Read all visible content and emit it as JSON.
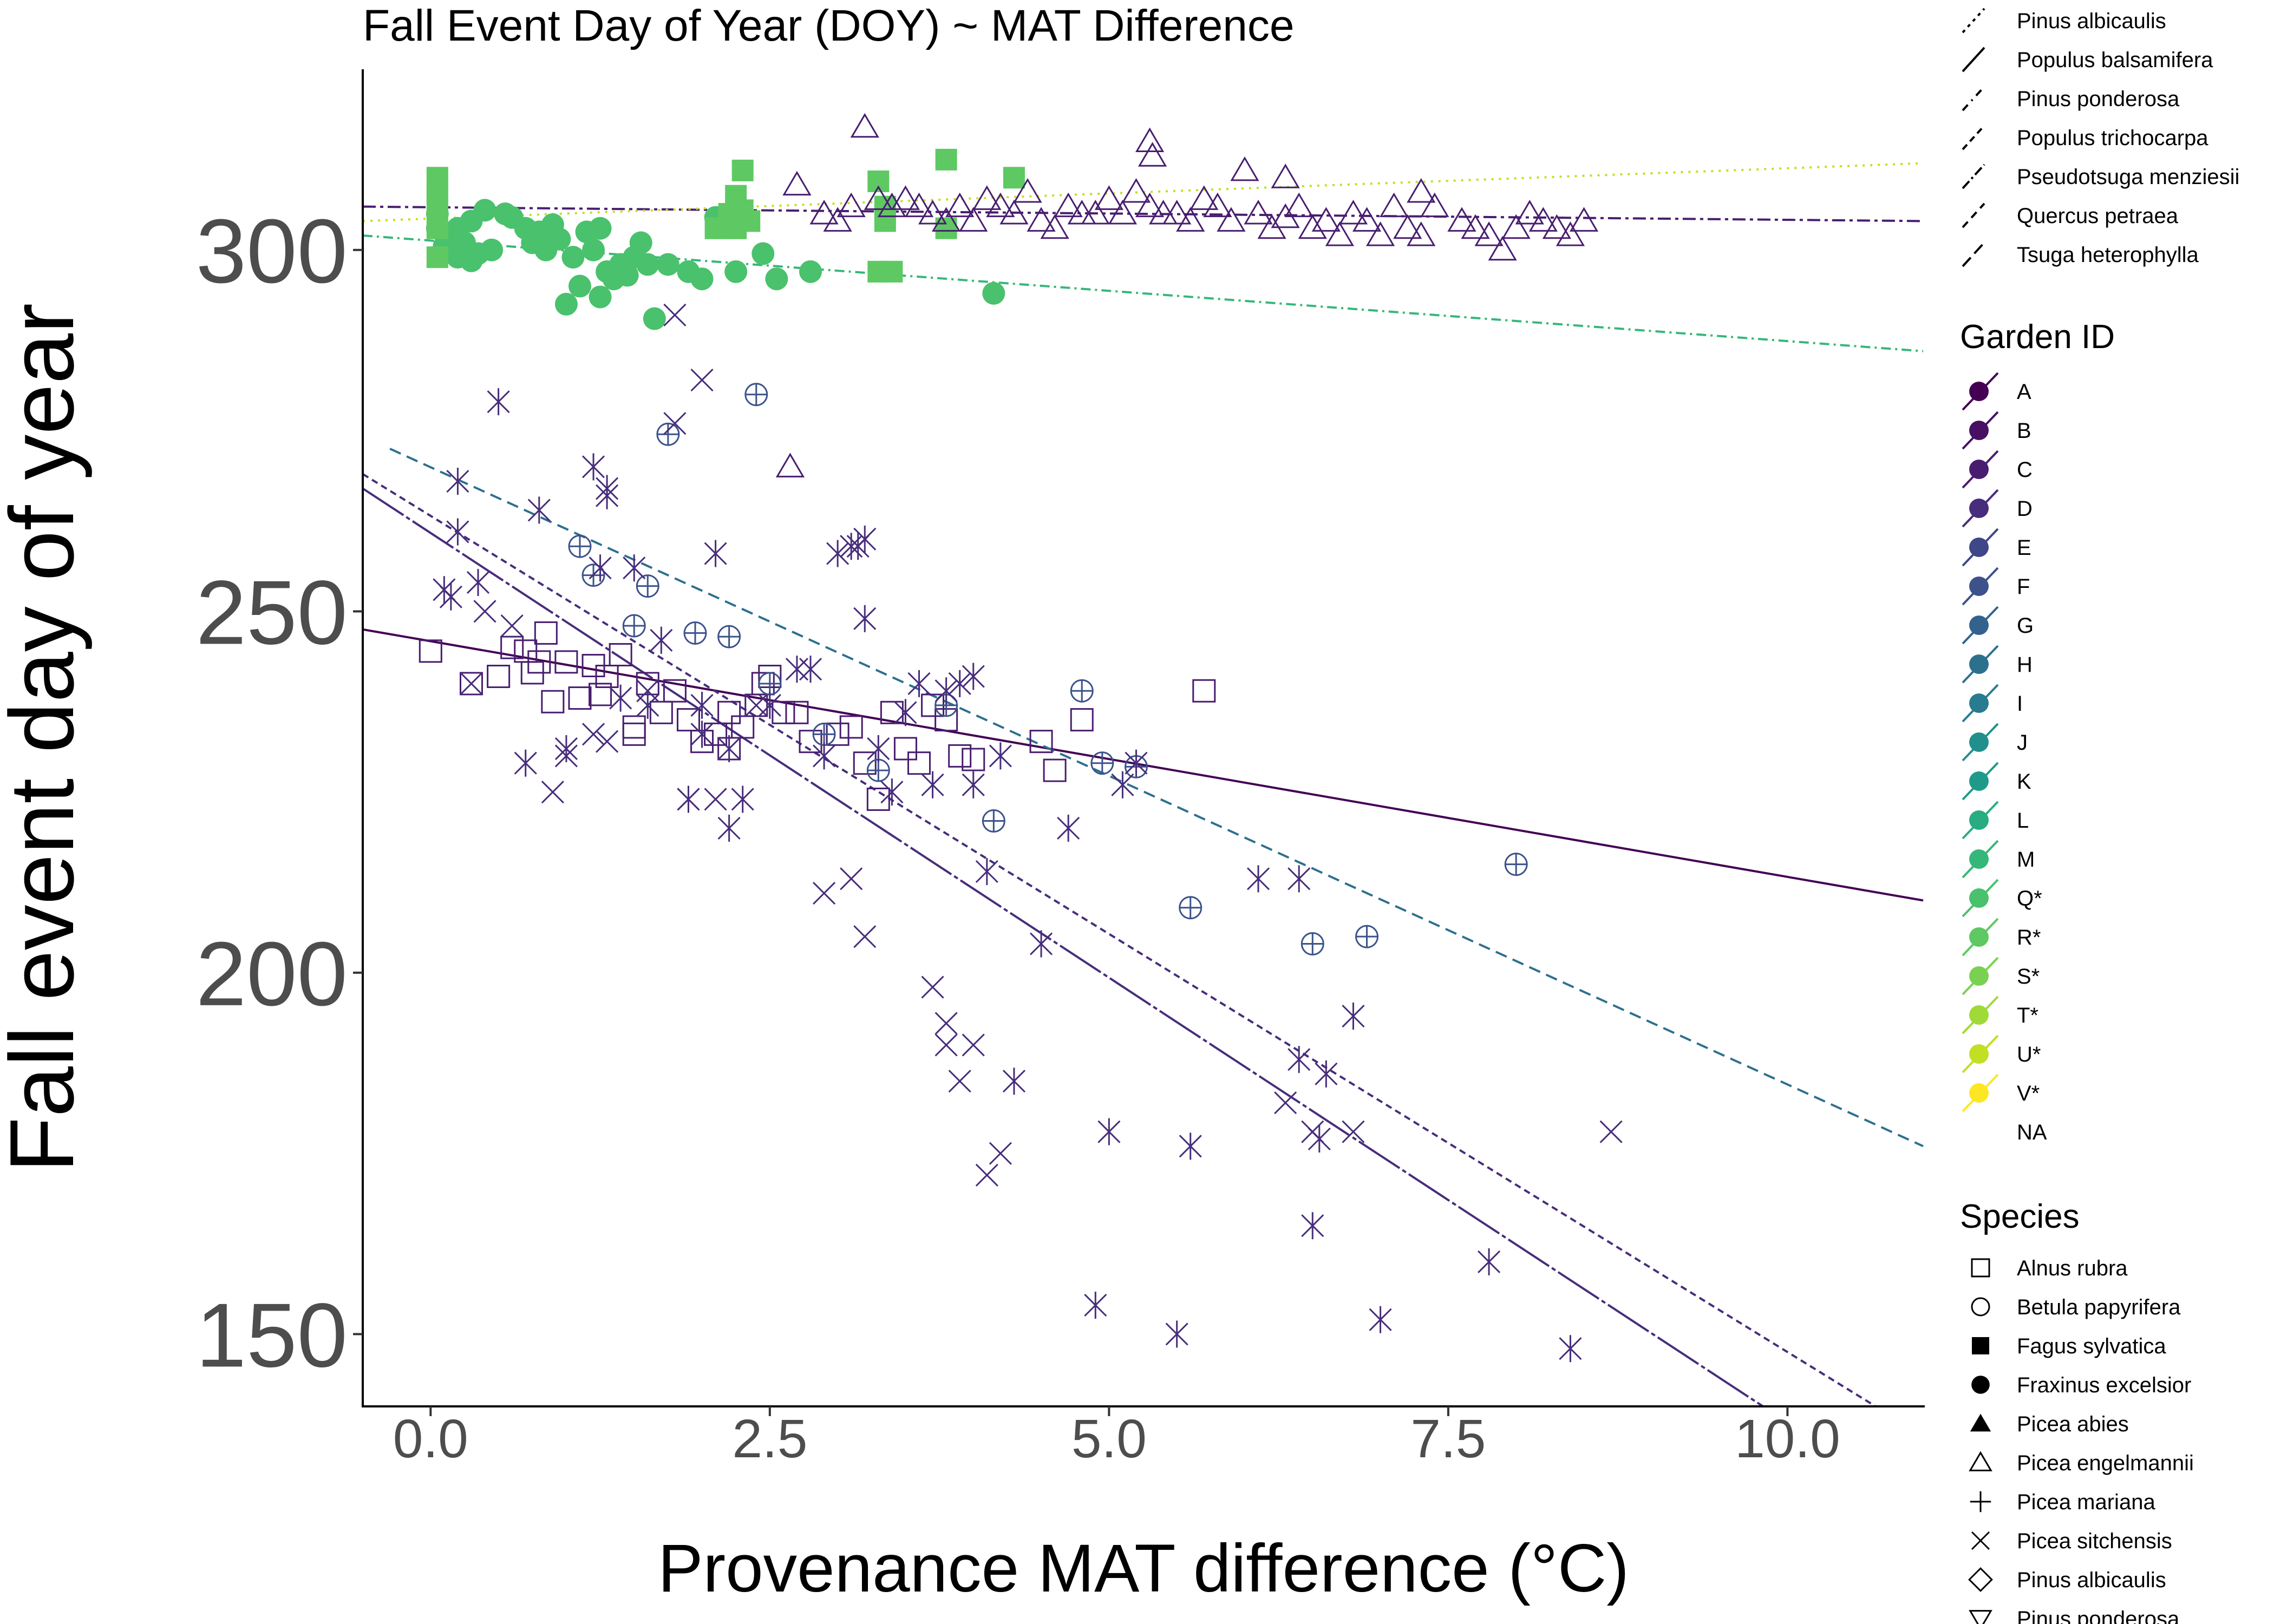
{
  "chart_data": {
    "type": "scatter",
    "title": "Fall Event Day of Year (DOY) ~ MAT Difference",
    "xlabel": "Provenance MAT difference (°C)",
    "ylabel": "Fall event day of year",
    "xlim": [
      -0.5,
      11.0
    ],
    "ylim": [
      140,
      325
    ],
    "x_ticks": [
      0.0,
      2.5,
      5.0,
      7.5,
      10.0
    ],
    "x_tick_labels": [
      "0.0",
      "2.5",
      "5.0",
      "7.5",
      "10.0"
    ],
    "y_ticks": [
      150,
      200,
      250,
      300
    ],
    "y_tick_labels": [
      "150",
      "200",
      "250",
      "300"
    ],
    "grid": false,
    "legend_position": "right",
    "legends": {
      "linetype_entries": [
        "Pinus albicaulis",
        "Populus balsamifera",
        "Pinus ponderosa",
        "Populus trichocarpa",
        "Pseudotsuga menziesii",
        "Quercus petraea",
        "Tsuga heterophylla"
      ],
      "garden": {
        "title": "Garden ID",
        "entries": [
          {
            "label": "A",
            "color": "#440154"
          },
          {
            "label": "B",
            "color": "#471063"
          },
          {
            "label": "C",
            "color": "#481D6F"
          },
          {
            "label": "D",
            "color": "#472D7B"
          },
          {
            "label": "E",
            "color": "#3F4788"
          },
          {
            "label": "F",
            "color": "#3B528B"
          },
          {
            "label": "G",
            "color": "#33638D"
          },
          {
            "label": "H",
            "color": "#2D708E"
          },
          {
            "label": "I",
            "color": "#287C8E"
          },
          {
            "label": "J",
            "color": "#21908C"
          },
          {
            "label": "K",
            "color": "#1F9A8A"
          },
          {
            "label": "L",
            "color": "#27AD81"
          },
          {
            "label": "M",
            "color": "#35B779"
          },
          {
            "label": "Q*",
            "color": "#4AC16D"
          },
          {
            "label": "R*",
            "color": "#5EC962"
          },
          {
            "label": "S*",
            "color": "#7AD151"
          },
          {
            "label": "T*",
            "color": "#A0DA39"
          },
          {
            "label": "U*",
            "color": "#C2DF23"
          },
          {
            "label": "V*",
            "color": "#FDE725"
          },
          {
            "label": "NA",
            "color": ""
          }
        ]
      },
      "species": {
        "title": "Species",
        "entries": [
          {
            "label": "Alnus rubra",
            "shape": "square-open"
          },
          {
            "label": "Betula papyrifera",
            "shape": "circle-open"
          },
          {
            "label": "Fagus sylvatica",
            "shape": "square-filled"
          },
          {
            "label": "Fraxinus excelsior",
            "shape": "circle-filled"
          },
          {
            "label": "Picea abies",
            "shape": "triangle-filled"
          },
          {
            "label": "Picea engelmannii",
            "shape": "triangle-open"
          },
          {
            "label": "Picea mariana",
            "shape": "plus"
          },
          {
            "label": "Picea sitchensis",
            "shape": "cross"
          },
          {
            "label": "Pinus albicaulis",
            "shape": "diamond-open"
          },
          {
            "label": "Pinus ponderosa",
            "shape": "triangle-down-open"
          }
        ]
      }
    },
    "trend_lines": [
      {
        "color": "#481D6F",
        "dash": "24 8 6 8",
        "x": [
          -0.5,
          11.0
        ],
        "y": [
          306.0,
          304.0
        ]
      },
      {
        "color": "#C2DF23",
        "dash": "4 10",
        "x": [
          -0.5,
          11.0
        ],
        "y": [
          304.0,
          312.0
        ]
      },
      {
        "color": "#35B779",
        "dash": "18 8 4 8",
        "x": [
          -0.5,
          11.0
        ],
        "y": [
          302.0,
          286.0
        ]
      },
      {
        "color": "#440154",
        "dash": "",
        "x": [
          -0.5,
          11.0
        ],
        "y": [
          247.5,
          210.0
        ]
      },
      {
        "color": "#2D708E",
        "dash": "22 12",
        "x": [
          -0.3,
          11.0
        ],
        "y": [
          272.5,
          176.0
        ]
      },
      {
        "color": "#472D7B",
        "dash": "12 8",
        "x": [
          -0.5,
          10.65
        ],
        "y": [
          269.0,
          140.0
        ]
      },
      {
        "color": "#472D7B",
        "dash": "90 6 8 6",
        "x": [
          -0.5,
          9.82
        ],
        "y": [
          267.0,
          140.0
        ]
      }
    ],
    "series": [
      {
        "shape": "circle-filled",
        "color": "#4AC16D",
        "x": [
          0.05,
          0.1,
          0.15,
          0.2,
          0.25,
          0.3,
          0.35,
          0.4,
          0.45,
          0.55,
          0.6,
          0.7,
          0.75,
          0.8,
          0.85,
          0.9,
          0.95,
          1.0,
          1.05,
          1.1,
          1.15,
          1.2,
          1.25,
          1.3,
          1.35,
          1.4,
          1.5,
          1.55,
          1.6,
          1.65,
          1.75,
          1.9,
          2.0,
          2.1,
          2.25,
          2.45,
          2.55,
          2.8,
          4.15,
          0.05,
          0.2,
          0.3,
          1.45,
          1.25
        ],
        "y": [
          303.0,
          300.5,
          302.0,
          299.0,
          301.0,
          304.0,
          299.5,
          305.5,
          300.0,
          305.0,
          304.5,
          303.0,
          301.0,
          302.5,
          300.0,
          303.5,
          301.5,
          292.5,
          299.0,
          295.0,
          302.5,
          300.0,
          293.5,
          297.0,
          296.0,
          298.0,
          299.0,
          301.0,
          298.0,
          290.5,
          298.0,
          297.0,
          296.0,
          304.5,
          297.0,
          299.5,
          296.0,
          297.0,
          294.0,
          305.0,
          303.0,
          298.5,
          296.5,
          303.0
        ]
      },
      {
        "shape": "square-filled",
        "color": "#5EC962",
        "x": [
          0.05,
          0.05,
          0.05,
          0.05,
          0.05,
          2.1,
          2.25,
          2.25,
          2.3,
          2.2,
          2.2,
          3.3,
          3.35,
          3.8,
          3.8,
          4.3,
          3.3,
          3.35,
          3.4,
          2.3,
          2.35
        ],
        "y": [
          308.0,
          310.0,
          303.0,
          306.0,
          299.0,
          303.0,
          303.0,
          307.5,
          311.0,
          305.0,
          303.5,
          309.5,
          304.0,
          312.5,
          303.0,
          310.0,
          297.0,
          306.0,
          297.0,
          305.5,
          304.0
        ]
      },
      {
        "shape": "triangle-open",
        "color": "#481D6F",
        "x": [
          2.7,
          2.65,
          3.2,
          4.8,
          5.4,
          5.6,
          6.0,
          6.3,
          6.5,
          6.6,
          6.8,
          7.0,
          7.2,
          7.3,
          7.4,
          7.6,
          7.7,
          7.8,
          7.9,
          8.0,
          8.1,
          8.2,
          8.3,
          8.4,
          8.5,
          5.2,
          5.3,
          5.5,
          5.7,
          5.8,
          5.9,
          6.1,
          6.2,
          6.4,
          6.7,
          6.9,
          7.1,
          5.0,
          5.1,
          4.0,
          4.1,
          4.2,
          4.3,
          4.4,
          4.5,
          4.6,
          4.7,
          4.9,
          3.5,
          3.6,
          3.7,
          3.8,
          3.9,
          2.9,
          3.0,
          3.1,
          3.3,
          3.4,
          5.3,
          5.32,
          6.3,
          7.3
        ],
        "y": [
          309.0,
          270.0,
          317.0,
          305.0,
          305.0,
          304.0,
          311.0,
          304.5,
          303.0,
          304.0,
          305.0,
          302.0,
          303.0,
          302.0,
          306.0,
          304.0,
          303.0,
          302.0,
          300.0,
          303.0,
          305.0,
          304.0,
          303.0,
          302.0,
          304.0,
          308.0,
          306.0,
          305.0,
          307.0,
          306.0,
          304.0,
          305.0,
          303.0,
          306.0,
          302.0,
          304.0,
          306.0,
          307.0,
          305.0,
          304.0,
          307.0,
          306.0,
          305.0,
          308.0,
          304.0,
          303.0,
          306.0,
          305.0,
          307.0,
          306.0,
          305.0,
          304.0,
          306.0,
          305.0,
          304.0,
          306.0,
          307.0,
          306.0,
          315.0,
          313.0,
          310.0,
          308.0
        ]
      },
      {
        "shape": "square-open",
        "color": "#481D6F",
        "x": [
          0.0,
          0.3,
          0.5,
          0.6,
          0.7,
          0.8,
          0.85,
          0.9,
          1.0,
          1.1,
          1.2,
          1.3,
          1.4,
          1.5,
          1.6,
          1.7,
          1.8,
          1.9,
          2.0,
          2.1,
          2.2,
          2.3,
          2.4,
          2.5,
          2.6,
          2.7,
          2.8,
          3.0,
          3.1,
          3.2,
          3.3,
          3.4,
          3.5,
          3.6,
          3.7,
          3.8,
          3.9,
          4.0,
          4.5,
          4.6,
          4.8,
          5.7,
          1.25,
          1.5,
          0.75,
          2.2,
          2.45
        ],
        "y": [
          244.5,
          240.0,
          241.0,
          245.0,
          244.5,
          243.0,
          247.0,
          237.5,
          243.0,
          238.0,
          242.5,
          241.0,
          244.0,
          234.0,
          240.0,
          236.0,
          239.0,
          235.0,
          232.0,
          233.0,
          236.0,
          234.0,
          237.0,
          241.0,
          236.0,
          236.0,
          232.0,
          233.0,
          234.0,
          229.0,
          224.0,
          236.0,
          231.0,
          229.0,
          237.0,
          235.0,
          230.0,
          229.5,
          232.0,
          228.0,
          235.0,
          239.0,
          238.5,
          233.0,
          241.5,
          231.0,
          240.0
        ]
      },
      {
        "shape": "circle-plus",
        "color": "#3B528B",
        "x": [
          1.1,
          1.2,
          1.5,
          1.6,
          1.75,
          1.95,
          2.2,
          2.4,
          2.5,
          2.9,
          3.3,
          3.8,
          4.15,
          4.8,
          4.95,
          5.2,
          5.6,
          6.5,
          6.9,
          8.0
        ],
        "y": [
          259.0,
          255.0,
          248.0,
          253.5,
          274.5,
          247.0,
          246.5,
          280.0,
          240.0,
          233.0,
          228.0,
          237.0,
          221.0,
          239.0,
          229.0,
          228.5,
          209.0,
          204.0,
          205.0,
          215.0
        ]
      },
      {
        "shape": "asterisk",
        "color": "#472D7B",
        "x": [
          0.1,
          0.15,
          0.2,
          0.35,
          0.5,
          0.7,
          0.8,
          1.0,
          1.2,
          1.25,
          1.3,
          1.4,
          1.5,
          1.6,
          1.7,
          1.9,
          2.0,
          2.1,
          2.2,
          2.3,
          2.5,
          2.7,
          2.9,
          3.0,
          3.1,
          3.2,
          3.3,
          3.5,
          3.6,
          3.7,
          3.8,
          3.9,
          4.0,
          4.1,
          4.2,
          4.3,
          4.5,
          4.7,
          4.9,
          5.0,
          5.1,
          5.2,
          5.5,
          5.6,
          6.1,
          6.4,
          6.5,
          6.6,
          6.8,
          7.0,
          7.8,
          8.4,
          0.2,
          1.3,
          2.0,
          2.2,
          2.8,
          3.4,
          4.0,
          6.4,
          3.15,
          3.2,
          6.55
        ],
        "y": [
          253.0,
          252.0,
          261.0,
          254.0,
          279.0,
          229.0,
          264.0,
          231.0,
          270.0,
          256.0,
          266.0,
          238.0,
          256.0,
          237.0,
          246.0,
          224.0,
          233.0,
          258.0,
          231.0,
          224.0,
          237.0,
          242.0,
          230.0,
          258.0,
          259.0,
          249.0,
          231.0,
          236.0,
          240.0,
          226.0,
          239.0,
          240.0,
          226.0,
          214.0,
          230.0,
          185.0,
          204.0,
          220.0,
          154.0,
          178.0,
          226.0,
          229.0,
          150.0,
          176.0,
          213.0,
          188.0,
          165.0,
          186.0,
          194.0,
          152.0,
          160.0,
          148.0,
          268.0,
          267.0,
          237.0,
          220.0,
          242.0,
          225.0,
          241.0,
          213.0,
          259.0,
          260.0,
          177.0
        ]
      },
      {
        "shape": "cross",
        "color": "#472D7B",
        "x": [
          0.3,
          0.4,
          0.6,
          0.9,
          1.0,
          1.2,
          1.3,
          1.6,
          1.8,
          1.9,
          2.0,
          2.1,
          2.4,
          2.9,
          3.1,
          3.2,
          3.7,
          3.8,
          3.9,
          4.0,
          4.1,
          4.2,
          6.3,
          6.5,
          6.8,
          8.7,
          1.8,
          3.8
        ],
        "y": [
          240.0,
          250.0,
          248.0,
          225.0,
          230.0,
          233.0,
          232.0,
          239.0,
          276.0,
          224.0,
          282.0,
          224.0,
          237.0,
          211.0,
          213.0,
          205.0,
          198.0,
          190.0,
          185.0,
          190.0,
          172.0,
          175.0,
          182.0,
          178.0,
          178.0,
          178.0,
          291.0,
          193.0
        ]
      }
    ]
  }
}
